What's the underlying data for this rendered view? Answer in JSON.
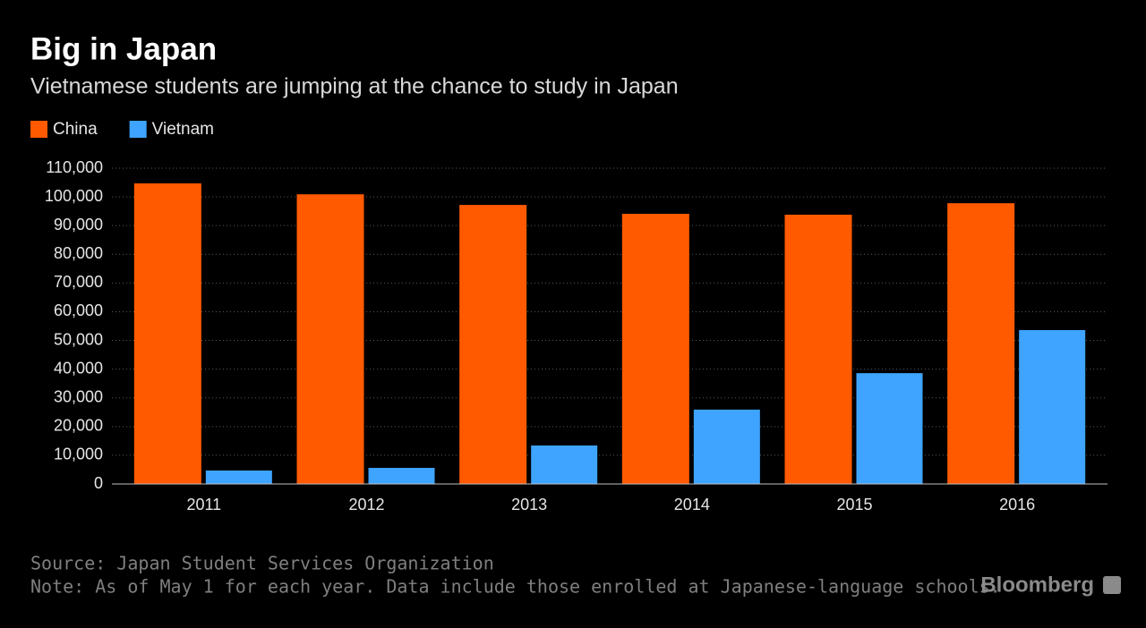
{
  "chart_data": {
    "type": "bar",
    "title": "Big in Japan",
    "subtitle": "Vietnamese students are jumping at the chance to study in Japan",
    "categories": [
      "2011",
      "2012",
      "2013",
      "2014",
      "2015",
      "2016"
    ],
    "series": [
      {
        "name": "China",
        "color": "#ff5a00",
        "values": [
          104700,
          100900,
          97200,
          94100,
          93800,
          97800
        ]
      },
      {
        "name": "Vietnam",
        "color": "#3ea4ff",
        "values": [
          4700,
          5600,
          13400,
          25900,
          38600,
          53600
        ]
      }
    ],
    "ylim": [
      0,
      110000
    ],
    "yticks": [
      0,
      {
        "value": 10000,
        "label": "10,000"
      },
      {
        "value": 20000,
        "label": "20,000"
      },
      {
        "value": 30000,
        "label": "30,000"
      },
      {
        "value": 40000,
        "label": "40,000"
      },
      {
        "value": 50000,
        "label": "50,000"
      },
      {
        "value": 60000,
        "label": "60,000"
      },
      {
        "value": 70000,
        "label": "70,000"
      },
      {
        "value": 80000,
        "label": "80,000"
      },
      {
        "value": 90000,
        "label": "90,000"
      },
      {
        "value": 100000,
        "label": "100,000"
      },
      {
        "value": 110000,
        "label": "110,000"
      }
    ],
    "grid": true,
    "source": "Source: Japan Student Services Organization",
    "note": "Note: As of May 1 for each year. Data include those enrolled at Japanese-language schools.",
    "brand": "Bloomberg"
  }
}
